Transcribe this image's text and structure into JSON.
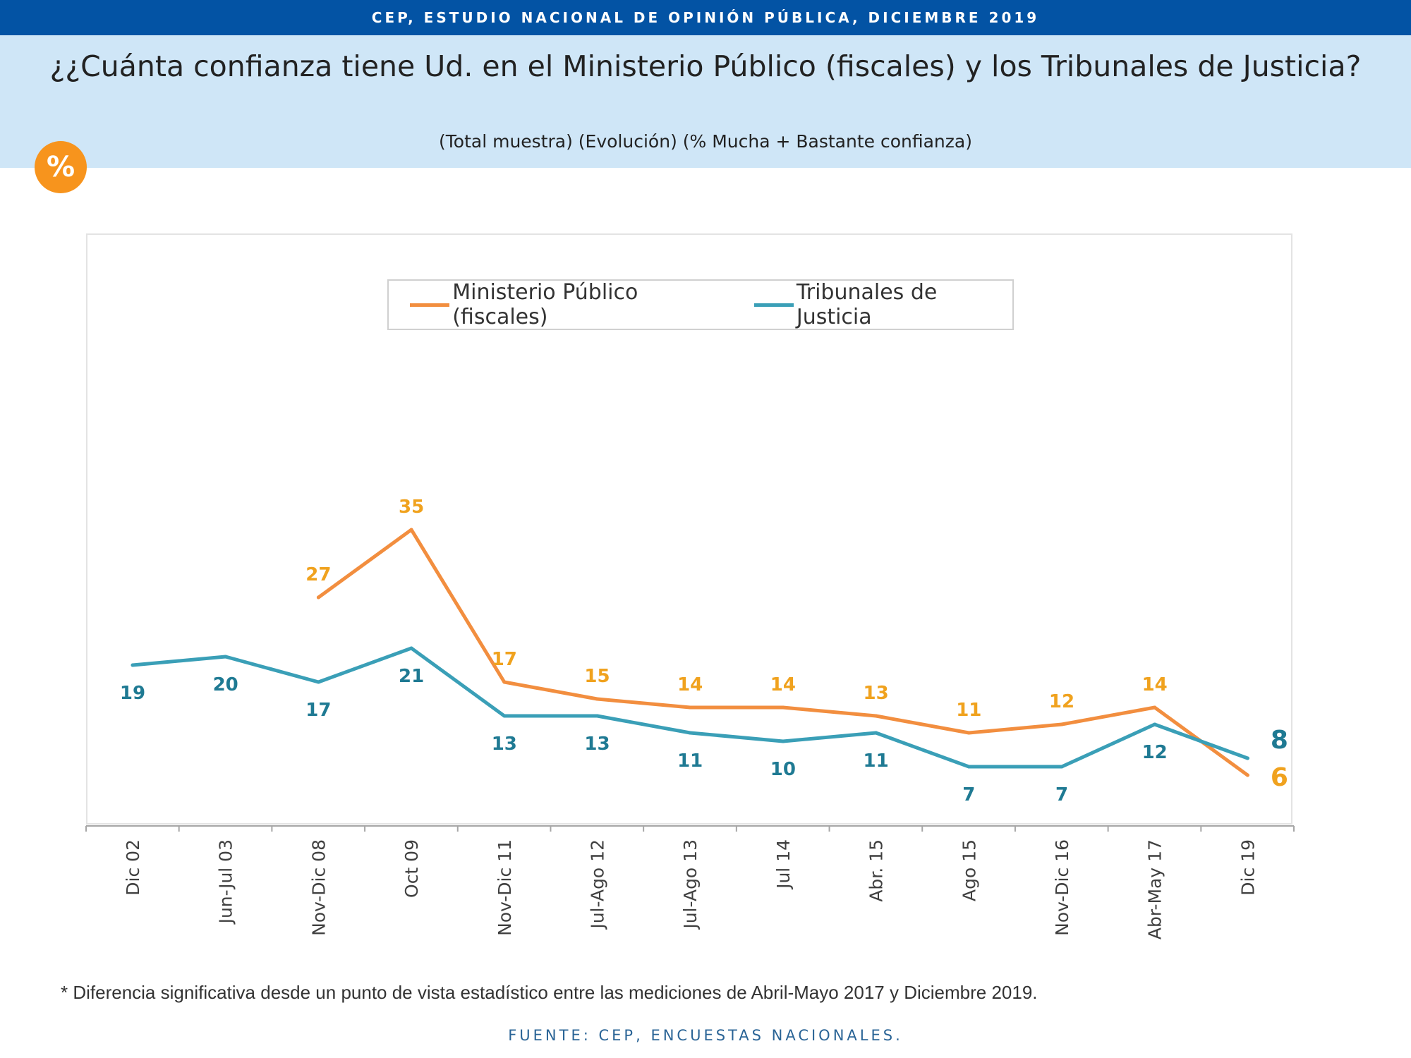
{
  "header": {
    "banner": "CEP, ESTUDIO NACIONAL DE OPINIÓN PÚBLICA, DICIEMBRE 2019",
    "title": "¿¿Cuánta confianza tiene Ud. en el Ministerio Público (fiscales) y los Tribunales de Justicia?",
    "subtitle": "(Total muestra) (Evolución) (% Mucha + Bastante confianza)",
    "badge": "%"
  },
  "colors": {
    "banner": "#0353a4",
    "band": "#cfe6f7",
    "badge": "#f7941d",
    "ministerio": "#f28e3f",
    "ministerio_label": "#f0a21e",
    "tribunales": "#3a9fb7",
    "tribunales_label": "#1f7a93"
  },
  "chart_data": {
    "type": "line",
    "categories": [
      "Dic 02",
      "Jun-Jul 03",
      "Nov-Dic 08",
      "Oct 09",
      "Nov-Dic 11",
      "Jul-Ago 12",
      "Jul-Ago 13",
      "Jul 14",
      "Abr. 15",
      "Ago 15",
      "Nov-Dic 16",
      "Abr-May 17",
      "Dic 19"
    ],
    "series": [
      {
        "name": "Ministerio Público (fiscales)",
        "values": [
          null,
          null,
          27,
          35,
          17,
          15,
          14,
          14,
          13,
          11,
          12,
          14,
          6
        ]
      },
      {
        "name": "Tribunales de Justicia",
        "values": [
          19,
          20,
          17,
          21,
          13,
          13,
          11,
          10,
          11,
          7,
          7,
          12,
          8
        ]
      }
    ],
    "legend": "top-center",
    "grid": false,
    "ylim": [
      0,
      70
    ]
  },
  "footer": {
    "note": "* Diferencia significativa desde un punto de vista estadístico entre las mediciones de Abril-Mayo 2017 y Diciembre 2019.",
    "source": "FUENTE: CEP, ENCUESTAS NACIONALES."
  }
}
